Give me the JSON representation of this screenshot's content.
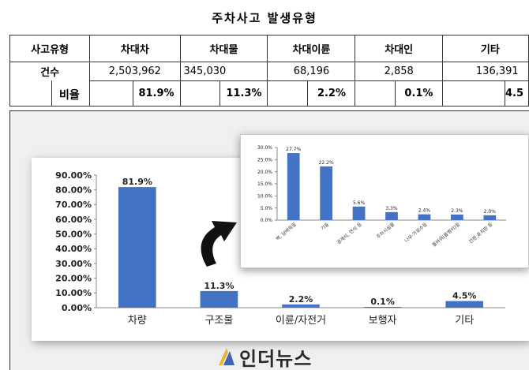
{
  "title": "주차사고 발생유형",
  "table": {
    "headers": [
      "사고유형",
      "차대차",
      "차대물",
      "차대이륜",
      "차대인",
      "기타"
    ],
    "count_label": "건수",
    "counts": [
      "2,503,962",
      "345,030",
      "68,196",
      "2,858",
      "136,391"
    ],
    "ratio_label": "비율",
    "ratios": [
      "81.9%",
      "11.3%",
      "2.2%",
      "0.1%",
      "4.5"
    ]
  },
  "chart_data": [
    {
      "type": "bar",
      "categories": [
        "차량",
        "구조물",
        "이륜/자전거",
        "보행자",
        "기타"
      ],
      "values": [
        81.9,
        11.3,
        2.2,
        0.1,
        4.5
      ],
      "data_labels": [
        "81.9%",
        "11.3%",
        "2.2%",
        "0.1%",
        "4.5%"
      ],
      "ylim": [
        0,
        90
      ],
      "yticks": [
        "0.00%",
        "10.00%",
        "20.00%",
        "30.00%",
        "40.00%",
        "50.00%",
        "60.00%",
        "70.00%",
        "80.00%",
        "90.00%"
      ],
      "grid": false,
      "color": "#4472c4"
    },
    {
      "type": "bar",
      "categories": [
        "벽, 담벼락등",
        "기둥",
        "경계석, 연석 등",
        "주차시설물",
        "나무·가로수등",
        "돌바위(돌멩이)등",
        "간판,표지판 등"
      ],
      "values": [
        27.7,
        22.2,
        5.6,
        3.3,
        2.4,
        2.3,
        2.0
      ],
      "data_labels": [
        "27.7%",
        "22.2%",
        "5.6%",
        "3.3%",
        "2.4%",
        "2.3%",
        "2.0%"
      ],
      "ylim": [
        0,
        30
      ],
      "yticks": [
        "0.0%",
        "5.0%",
        "10.0%",
        "15.0%",
        "20.0%",
        "25.0%",
        "30.0%"
      ],
      "grid": false,
      "color": "#4472c4"
    }
  ],
  "watermark": "인더뉴스"
}
